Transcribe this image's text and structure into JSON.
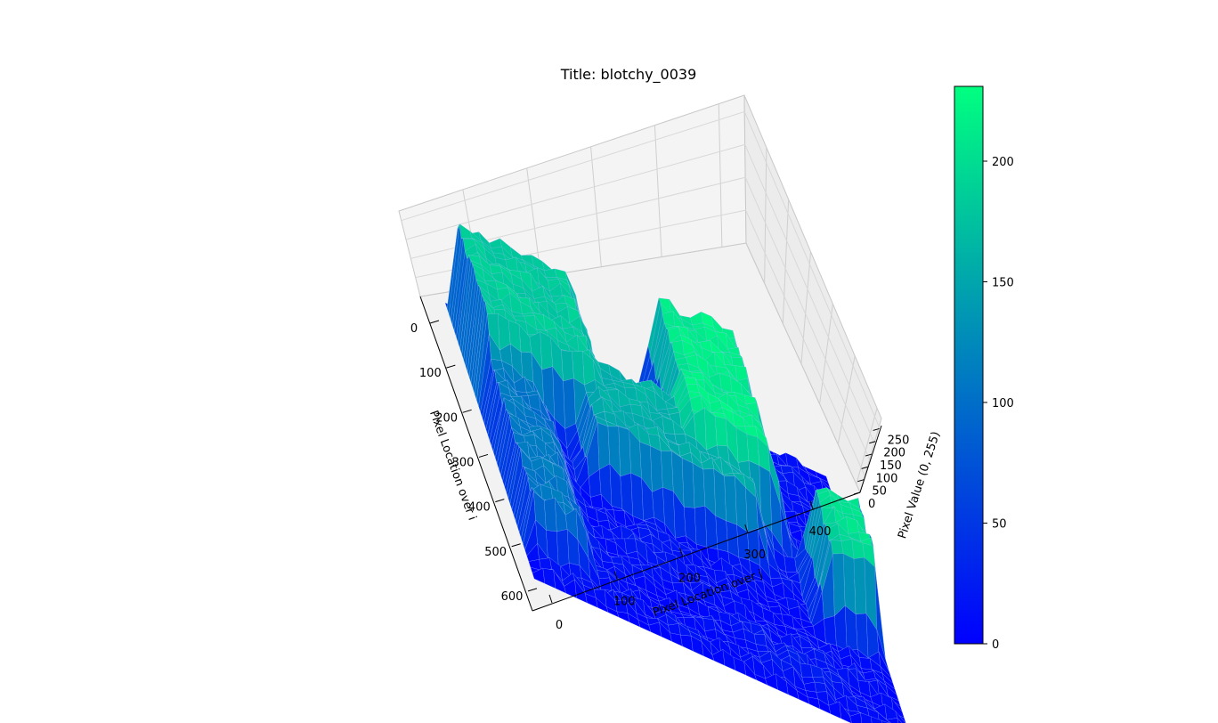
{
  "chart_data": {
    "type": "surface3d",
    "title": "Title: blotchy_0039",
    "xlabel": "Pixel Location over i",
    "ylabel": "Pixel Location over j",
    "zlabel": "Pixel Value (0, 255)",
    "x_ticks": [
      "0",
      "100",
      "200",
      "300",
      "400",
      "500",
      "600"
    ],
    "y_ticks": [
      "0",
      "100",
      "200",
      "300",
      "400"
    ],
    "z_ticks": [
      "0",
      "50",
      "100",
      "150",
      "200",
      "250"
    ],
    "xlim": [
      0,
      640
    ],
    "ylim": [
      0,
      480
    ],
    "zlim": [
      0,
      255
    ],
    "colormap": "winter",
    "colormap_colors": [
      "#0000ff",
      "#00ff80"
    ],
    "colorbar": {
      "ticks": [
        "0",
        "50",
        "100",
        "150",
        "200"
      ],
      "range": [
        0,
        231
      ]
    },
    "plateaus": [
      {
        "i_range": [
          0,
          230
        ],
        "j_range": [
          0,
          150
        ],
        "value": 185
      },
      {
        "i_range": [
          0,
          270
        ],
        "j_range": [
          270,
          360
        ],
        "value": 215
      },
      {
        "i_range": [
          180,
          330
        ],
        "j_range": [
          140,
          330
        ],
        "value": 160
      },
      {
        "i_range": [
          300,
          420
        ],
        "j_range": [
          420,
          470
        ],
        "value": 205
      },
      {
        "i_range": [
          120,
          560
        ],
        "j_range": [
          0,
          70
        ],
        "value": 110
      }
    ]
  }
}
